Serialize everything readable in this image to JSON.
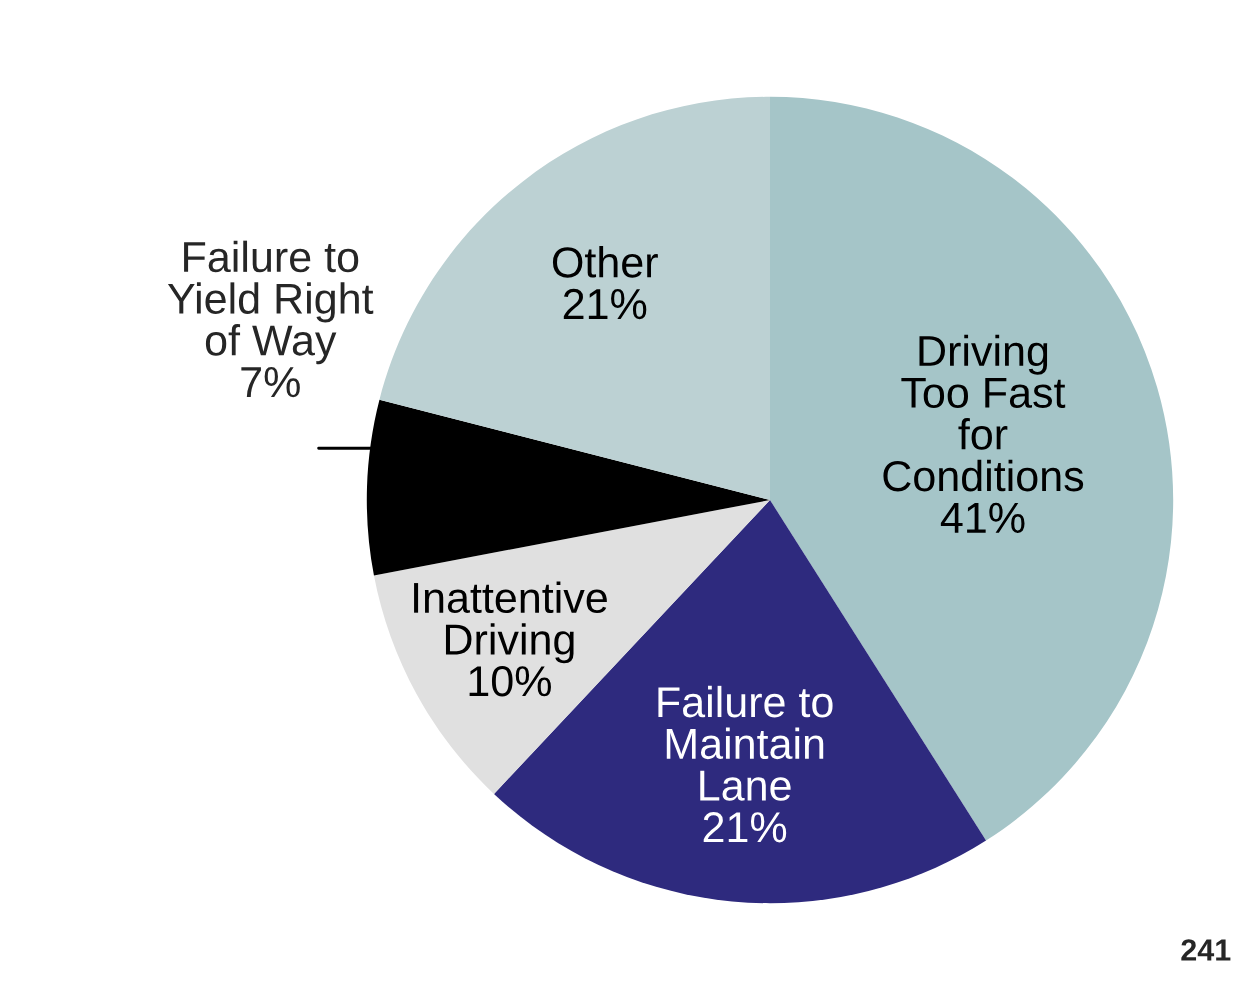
{
  "chart_data": {
    "type": "pie",
    "categories": [
      "Driving\nToo Fast\nfor\nConditions",
      "Failure to\nMaintain\nLane",
      "Inattentive\nDriving",
      "Failure to\nYield Right\nof Way",
      "Other"
    ],
    "values": [
      41,
      21,
      10,
      7,
      21
    ],
    "value_labels": [
      "41%",
      "21%",
      "10%",
      "7%",
      "21%"
    ],
    "colors": [
      "#a5c5c8",
      "#2e2a7e",
      "#e0e0e0",
      "#000000",
      "#bcd1d3"
    ],
    "annotations": [
      "241"
    ]
  }
}
